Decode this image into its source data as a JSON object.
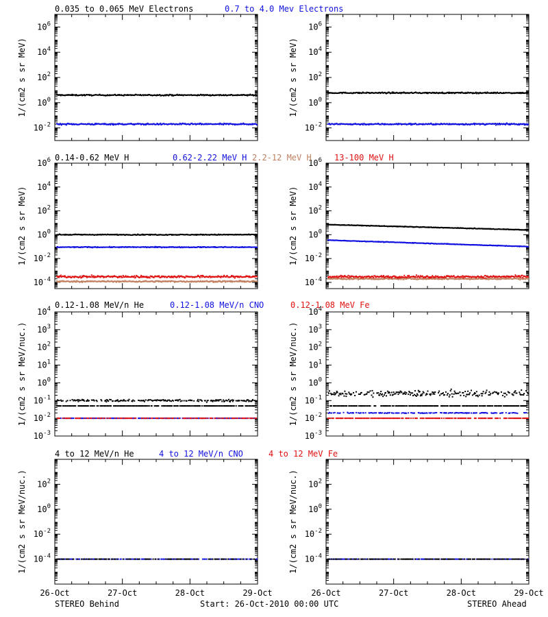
{
  "footer": {
    "left": "STEREO Behind",
    "center": "Start: 26-Oct-2010 00:00 UTC",
    "right": "STEREO Ahead"
  },
  "x_ticks": [
    "26-Oct",
    "27-Oct",
    "28-Oct",
    "29-Oct"
  ],
  "colors": {
    "black": "#000000",
    "blue": "#1010e0",
    "tan": "#c08060",
    "red": "#e01010"
  },
  "chart_data": [
    {
      "type": "scatter",
      "row": 1,
      "ylabel": "1/(cm2 s sr MeV)",
      "yscale": "log",
      "ylim": [
        0.001,
        10000000
      ],
      "yticks": [
        {
          "v": 0.01,
          "base": "10",
          "exp": "-2"
        },
        {
          "v": 1,
          "base": "10",
          "exp": "0"
        },
        {
          "v": 100,
          "base": "10",
          "exp": "2"
        },
        {
          "v": 10000,
          "base": "10",
          "exp": "4"
        },
        {
          "v": 1000000,
          "base": "10",
          "exp": "6"
        }
      ],
      "legend": [
        {
          "text": "0.035 to 0.065 MeV Electrons",
          "color": "#000000"
        },
        {
          "text": "0.7 to 4.0 Mev Electrons",
          "color": "#1010e0"
        }
      ],
      "panels": [
        {
          "spacecraft": "STEREO Behind",
          "series": [
            {
              "color": "#000000",
              "level": 4,
              "noise": 0.04,
              "density": 1
            },
            {
              "color": "#1010e0",
              "level": 0.02,
              "noise": 0.05,
              "density": 1
            }
          ]
        },
        {
          "spacecraft": "STEREO Ahead",
          "series": [
            {
              "color": "#000000",
              "level": 6,
              "noise": 0.04,
              "density": 1
            },
            {
              "color": "#1010e0",
              "level": 0.02,
              "noise": 0.05,
              "density": 1
            }
          ]
        }
      ]
    },
    {
      "type": "scatter",
      "row": 2,
      "ylabel": "1/(cm2 s sr MeV)",
      "yscale": "log",
      "ylim": [
        3e-05,
        1000000
      ],
      "yticks": [
        {
          "v": 0.0001,
          "base": "10",
          "exp": "-4"
        },
        {
          "v": 0.01,
          "base": "10",
          "exp": "-2"
        },
        {
          "v": 1,
          "base": "10",
          "exp": "0"
        },
        {
          "v": 100,
          "base": "10",
          "exp": "2"
        },
        {
          "v": 10000,
          "base": "10",
          "exp": "4"
        },
        {
          "v": 1000000,
          "base": "10",
          "exp": "6"
        }
      ],
      "legend": [
        {
          "text": "0.14-0.62 MeV H",
          "color": "#000000"
        },
        {
          "text": "0.62-2.22 MeV H",
          "color": "#1010e0"
        },
        {
          "text": "2.2-12 MeV H",
          "color": "#c08060"
        },
        {
          "text": "13-100 MeV H",
          "color": "#e01010"
        }
      ],
      "panels": [
        {
          "spacecraft": "STEREO Behind",
          "series": [
            {
              "color": "#000000",
              "level": 1.0,
              "noise": 0.03,
              "density": 1
            },
            {
              "color": "#1010e0",
              "level": 0.09,
              "noise": 0.03,
              "density": 1
            },
            {
              "color": "#c08060",
              "level": 0.00012,
              "noise": 0.05,
              "density": 1
            },
            {
              "color": "#e01010",
              "level": 0.0003,
              "noise": 0.08,
              "density": 1
            }
          ]
        },
        {
          "spacecraft": "STEREO Ahead",
          "series": [
            {
              "color": "#000000",
              "start": 7,
              "end": 2.5,
              "noise": 0.02,
              "density": 1
            },
            {
              "color": "#1010e0",
              "start": 0.35,
              "end": 0.1,
              "noise": 0.02,
              "density": 1
            },
            {
              "color": "#c08060",
              "level": 0.0002,
              "noise": 0.05,
              "density": 1
            },
            {
              "color": "#e01010",
              "level": 0.0003,
              "noise": 0.08,
              "density": 1
            }
          ]
        }
      ]
    },
    {
      "type": "scatter",
      "row": 3,
      "ylabel": "1/(cm2 s sr MeV/nuc.)",
      "yscale": "log",
      "ylim": [
        0.001,
        10000
      ],
      "yticks": [
        {
          "v": 0.001,
          "base": "10",
          "exp": "-3"
        },
        {
          "v": 0.01,
          "base": "10",
          "exp": "-2"
        },
        {
          "v": 0.1,
          "base": "10",
          "exp": "-1"
        },
        {
          "v": 1,
          "base": "10",
          "exp": "0"
        },
        {
          "v": 10,
          "base": "10",
          "exp": "1"
        },
        {
          "v": 100,
          "base": "10",
          "exp": "2"
        },
        {
          "v": 1000,
          "base": "10",
          "exp": "3"
        },
        {
          "v": 10000,
          "base": "10",
          "exp": "4"
        }
      ],
      "legend": [
        {
          "text": "0.12-1.08 MeV/n He",
          "color": "#000000"
        },
        {
          "text": "0.12-1.08 MeV/n CNO",
          "color": "#1010e0"
        },
        {
          "text": "0.12-1.08 MeV Fe",
          "color": "#e01010"
        }
      ],
      "panels": [
        {
          "spacecraft": "STEREO Behind",
          "series": [
            {
              "color": "#000000",
              "level": 0.1,
              "noise": 0.05,
              "density": 0.6
            },
            {
              "color": "#000000",
              "level": 0.05,
              "noise": 0.0,
              "density": 0.7
            },
            {
              "color": "#1010e0",
              "level": 0.01,
              "noise": 0.0,
              "density": 0.6
            },
            {
              "color": "#e01010",
              "level": 0.01,
              "noise": 0.0,
              "density": 0.4
            }
          ]
        },
        {
          "spacecraft": "STEREO Ahead",
          "series": [
            {
              "color": "#000000",
              "level": 0.25,
              "noise": 0.15,
              "density": 0.7
            },
            {
              "color": "#000000",
              "level": 0.05,
              "noise": 0.0,
              "density": 0.7
            },
            {
              "color": "#1010e0",
              "level": 0.02,
              "noise": 0.02,
              "density": 0.5
            },
            {
              "color": "#e01010",
              "level": 0.01,
              "noise": 0.0,
              "density": 0.6
            }
          ]
        }
      ]
    },
    {
      "type": "scatter",
      "row": 4,
      "ylabel": "1/(cm2 s sr MeV/nuc.)",
      "yscale": "log",
      "ylim": [
        1e-06,
        10000
      ],
      "yticks": [
        {
          "v": 0.0001,
          "base": "10",
          "exp": "-4"
        },
        {
          "v": 0.01,
          "base": "10",
          "exp": "-2"
        },
        {
          "v": 1,
          "base": "10",
          "exp": "0"
        },
        {
          "v": 100,
          "base": "10",
          "exp": "2"
        }
      ],
      "legend": [
        {
          "text": "4 to 12 MeV/n He",
          "color": "#000000"
        },
        {
          "text": "4 to 12 MeV/n CNO",
          "color": "#1010e0"
        },
        {
          "text": "4 to 12 MeV Fe",
          "color": "#e01010"
        }
      ],
      "panels": [
        {
          "spacecraft": "STEREO Behind",
          "series": [
            {
              "color": "#1010e0",
              "level": 0.0001,
              "noise": 0.0,
              "density": 0.55
            },
            {
              "color": "#000000",
              "level": 0.0001,
              "noise": 0.0,
              "density": 0.3
            }
          ]
        },
        {
          "spacecraft": "STEREO Ahead",
          "series": [
            {
              "color": "#1010e0",
              "level": 0.0001,
              "noise": 0.0,
              "density": 0.5
            },
            {
              "color": "#000000",
              "level": 0.0001,
              "noise": 0.0,
              "density": 0.4
            }
          ]
        }
      ]
    }
  ]
}
